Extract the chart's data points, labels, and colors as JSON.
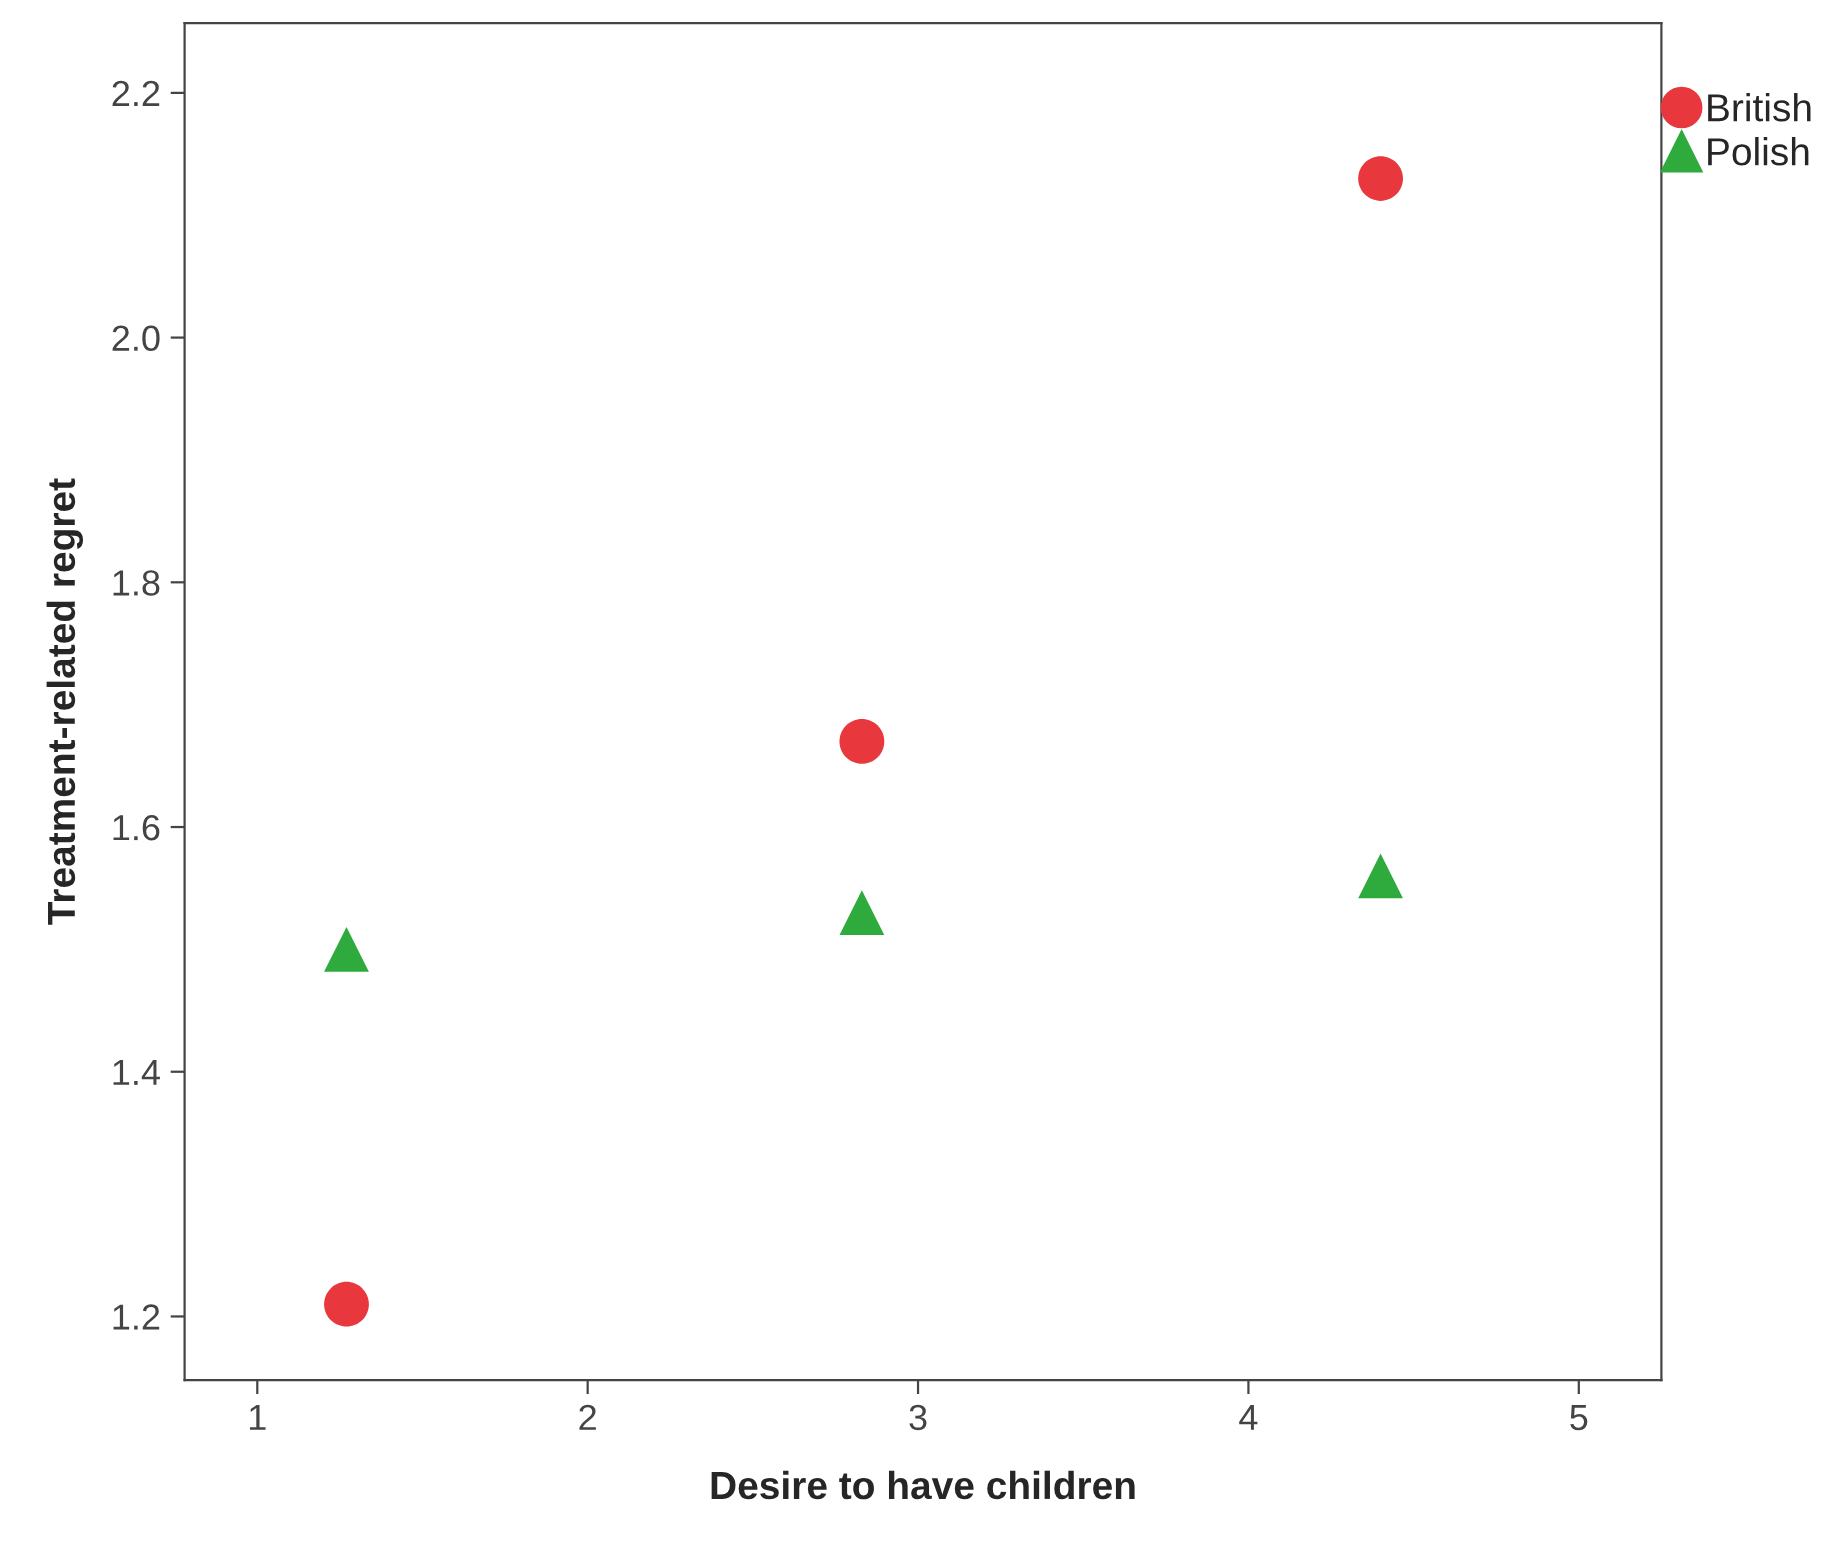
{
  "chart_data": {
    "type": "scatter",
    "xlabel": "Desire to have children",
    "ylabel": "Treatment-related regret",
    "x": [
      1.27,
      2.83,
      4.4
    ],
    "series": [
      {
        "name": "British",
        "color": "#e8383d",
        "marker": "circle",
        "values": [
          1.21,
          1.67,
          2.13
        ]
      },
      {
        "name": "Polish",
        "color": "#2eab3c",
        "marker": "triangle",
        "values": [
          1.5,
          1.53,
          1.56
        ]
      }
    ],
    "xlim": [
      0.78,
      5.25
    ],
    "xticks": [
      1,
      2,
      3,
      4,
      5
    ],
    "ylim": [
      1.148,
      2.257
    ],
    "yticks": [
      1.2,
      1.4,
      1.6,
      1.8,
      {
        "value": 2.0,
        "label": "2.0"
      },
      2.2
    ],
    "grid": false,
    "legend": "top right"
  }
}
